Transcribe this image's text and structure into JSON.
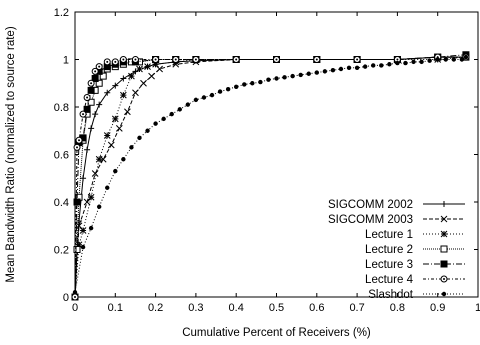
{
  "chart_data": {
    "type": "line",
    "title": "",
    "xlabel": "Cumulative Percent of Receivers (%)",
    "ylabel": "Mean Bandwidth Ratio (normalized to source rate)",
    "xlim": [
      0,
      1
    ],
    "ylim": [
      0,
      1.2
    ],
    "xticks": [
      0,
      0.1,
      0.2,
      0.3,
      0.4,
      0.5,
      0.6,
      0.7,
      0.8,
      0.9,
      1
    ],
    "xtick_labels": [
      "0",
      "0.1",
      "0.2",
      "0.3",
      "0.4",
      "0.5",
      "0.6",
      "0.7",
      "0.8",
      "0.9",
      "1"
    ],
    "yticks": [
      0,
      0.2,
      0.4,
      0.6,
      0.8,
      1,
      1.2
    ],
    "ytick_labels": [
      "0",
      "0.2",
      "0.4",
      "0.6",
      "0.8",
      "1",
      "1.2"
    ],
    "grid": false,
    "legend_position": "bottom-right",
    "series": [
      {
        "name": "SIGCOMM 2002",
        "marker": "plus",
        "dash": "",
        "x": [
          0,
          0.005,
          0.01,
          0.02,
          0.03,
          0.04,
          0.05,
          0.06,
          0.08,
          0.1,
          0.12,
          0.15,
          0.18,
          0.2,
          0.25,
          0.3,
          0.4,
          0.5,
          0.6,
          0.7,
          0.8,
          0.9,
          0.97
        ],
        "y": [
          0.0,
          0.2,
          0.32,
          0.5,
          0.62,
          0.71,
          0.77,
          0.81,
          0.86,
          0.89,
          0.92,
          0.95,
          0.97,
          0.98,
          0.99,
          0.995,
          1.0,
          1.0,
          1.0,
          1.0,
          1.0,
          1.01,
          1.01
        ]
      },
      {
        "name": "SIGCOMM 2003",
        "marker": "cross",
        "dash": "4,2",
        "x": [
          0,
          0.01,
          0.03,
          0.05,
          0.07,
          0.09,
          0.11,
          0.13,
          0.15,
          0.17,
          0.19,
          0.21,
          0.25,
          0.3,
          0.4,
          0.5,
          0.6,
          0.7,
          0.8,
          0.9,
          0.97
        ],
        "y": [
          0.0,
          0.3,
          0.4,
          0.52,
          0.58,
          0.64,
          0.71,
          0.78,
          0.86,
          0.9,
          0.93,
          0.96,
          0.98,
          0.99,
          1.0,
          1.0,
          1.0,
          1.0,
          1.0,
          1.01,
          1.01
        ]
      },
      {
        "name": "Lecture 1",
        "marker": "asterisk",
        "dash": "1,2",
        "x": [
          0,
          0.01,
          0.02,
          0.04,
          0.06,
          0.08,
          0.1,
          0.12,
          0.14,
          0.16,
          0.18,
          0.2,
          0.25,
          0.3,
          0.4,
          0.5,
          0.6,
          0.7,
          0.8,
          0.9,
          0.97
        ],
        "y": [
          0.0,
          0.22,
          0.28,
          0.42,
          0.58,
          0.68,
          0.75,
          0.85,
          0.93,
          0.96,
          0.97,
          0.98,
          0.99,
          1.0,
          1.0,
          1.0,
          1.0,
          1.0,
          1.0,
          1.0,
          1.01
        ]
      },
      {
        "name": "Lecture 2",
        "marker": "square-open",
        "dash": "1,1",
        "x": [
          0,
          0.005,
          0.01,
          0.02,
          0.03,
          0.04,
          0.05,
          0.06,
          0.07,
          0.08,
          0.1,
          0.12,
          0.14,
          0.16,
          0.2,
          0.25,
          0.3,
          0.4,
          0.5,
          0.6,
          0.7,
          0.8,
          0.9,
          0.97
        ],
        "y": [
          0.0,
          0.2,
          0.42,
          0.66,
          0.77,
          0.82,
          0.87,
          0.9,
          0.93,
          0.96,
          0.97,
          0.98,
          0.99,
          0.99,
          1.0,
          1.0,
          1.0,
          1.0,
          1.0,
          1.0,
          1.0,
          1.0,
          1.01,
          1.01
        ]
      },
      {
        "name": "Lecture 3",
        "marker": "square-filled",
        "dash": "6,2,1,2",
        "x": [
          0,
          0.005,
          0.01,
          0.02,
          0.03,
          0.04,
          0.05,
          0.06,
          0.08,
          0.1,
          0.12,
          0.15,
          0.2,
          0.25,
          0.3,
          0.4,
          0.5,
          0.6,
          0.7,
          0.8,
          0.9,
          0.97
        ],
        "y": [
          0.0,
          0.4,
          0.65,
          0.67,
          0.79,
          0.87,
          0.92,
          0.95,
          0.97,
          0.98,
          0.99,
          0.99,
          1.0,
          1.0,
          1.0,
          1.0,
          1.0,
          1.0,
          1.0,
          1.0,
          1.01,
          1.02
        ]
      },
      {
        "name": "Lecture 4",
        "marker": "circle-dot",
        "dash": "3,2,1,2",
        "x": [
          0,
          0.005,
          0.01,
          0.02,
          0.03,
          0.04,
          0.05,
          0.06,
          0.08,
          0.1,
          0.12,
          0.15,
          0.2,
          0.25,
          0.3,
          0.4,
          0.5,
          0.6,
          0.7,
          0.8,
          0.9,
          0.97
        ],
        "y": [
          0.0,
          0.63,
          0.66,
          0.77,
          0.84,
          0.9,
          0.95,
          0.97,
          0.99,
          0.99,
          1.0,
          1.0,
          1.0,
          1.0,
          1.0,
          1.0,
          1.0,
          1.0,
          1.0,
          1.0,
          1.01,
          1.01
        ]
      },
      {
        "name": "Slashdot",
        "marker": "dot",
        "dash": "1,2",
        "x": [
          0,
          0.02,
          0.04,
          0.06,
          0.08,
          0.1,
          0.12,
          0.14,
          0.16,
          0.18,
          0.2,
          0.22,
          0.24,
          0.26,
          0.28,
          0.3,
          0.32,
          0.34,
          0.36,
          0.38,
          0.4,
          0.42,
          0.44,
          0.46,
          0.48,
          0.5,
          0.52,
          0.54,
          0.56,
          0.58,
          0.6,
          0.62,
          0.64,
          0.66,
          0.68,
          0.7,
          0.72,
          0.74,
          0.76,
          0.78,
          0.8,
          0.82,
          0.84,
          0.86,
          0.88,
          0.9,
          0.92,
          0.94,
          0.96,
          0.97
        ],
        "y": [
          0.02,
          0.21,
          0.29,
          0.38,
          0.46,
          0.53,
          0.58,
          0.63,
          0.67,
          0.7,
          0.73,
          0.75,
          0.77,
          0.79,
          0.81,
          0.83,
          0.84,
          0.85,
          0.865,
          0.875,
          0.885,
          0.895,
          0.9,
          0.905,
          0.915,
          0.92,
          0.925,
          0.93,
          0.935,
          0.94,
          0.945,
          0.95,
          0.955,
          0.96,
          0.965,
          0.965,
          0.97,
          0.975,
          0.975,
          0.98,
          0.985,
          0.985,
          0.99,
          0.99,
          0.995,
          1.0,
          1.0,
          1.0,
          1.0,
          1.01
        ]
      }
    ]
  }
}
